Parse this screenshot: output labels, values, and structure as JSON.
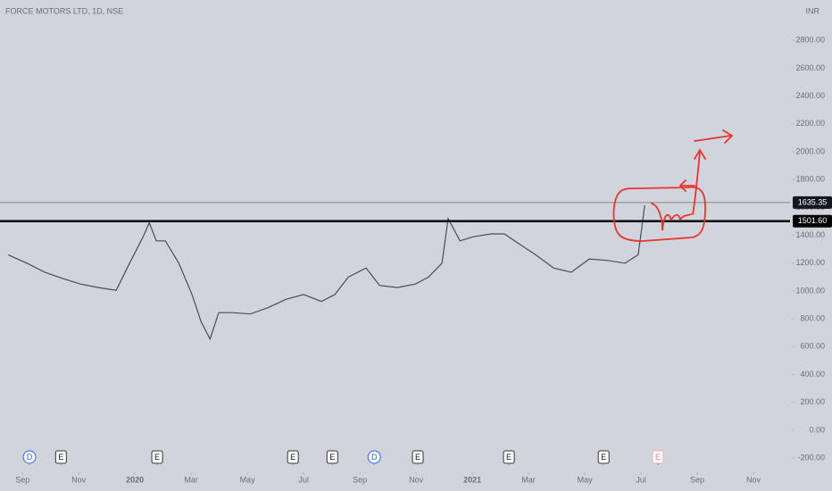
{
  "chart_data": {
    "type": "line",
    "title": "FORCE MOTORS LTD, 1D, NSE",
    "currency": "INR",
    "x": [
      -0.51,
      0.16,
      0.79,
      1.43,
      2.06,
      2.7,
      3.33,
      3.81,
      4.29,
      4.51,
      4.76,
      5.08,
      5.56,
      6.03,
      6.35,
      6.67,
      6.98,
      7.46,
      8.1,
      8.73,
      9.37,
      10.0,
      10.63,
      11.11,
      11.59,
      12.22,
      12.7,
      13.33,
      13.97,
      14.44,
      14.92,
      15.14,
      15.56,
      16.03,
      16.67,
      17.14,
      17.62,
      18.25,
      18.89,
      19.52,
      20.16,
      20.79,
      21.43,
      21.9,
      22.13
    ],
    "series": [
      {
        "name": "FORCE MOTORS LTD",
        "color": "#4a4d57",
        "values": [
          1260,
          1200,
          1135,
          1090,
          1050,
          1025,
          1005,
          1200,
          1390,
          1490,
          1360,
          1360,
          1200,
          975,
          780,
          655,
          845,
          845,
          835,
          880,
          940,
          975,
          925,
          975,
          1100,
          1165,
          1040,
          1025,
          1050,
          1100,
          1200,
          1520,
          1360,
          1390,
          1410,
          1410,
          1345,
          1260,
          1165,
          1135,
          1230,
          1220,
          1200,
          1260,
          1615
        ]
      }
    ],
    "xlim": [
      -0.8,
      27.3
    ],
    "xticks": [
      {
        "value": 0,
        "label": "Sep"
      },
      {
        "value": 2,
        "label": "Nov"
      },
      {
        "value": 4,
        "label": "2020"
      },
      {
        "value": 6,
        "label": "Mar"
      },
      {
        "value": 8,
        "label": "May"
      },
      {
        "value": 10,
        "label": "Jul"
      },
      {
        "value": 12,
        "label": "Sep"
      },
      {
        "value": 14,
        "label": "Nov"
      },
      {
        "value": 16,
        "label": "2021"
      },
      {
        "value": 18,
        "label": "Mar"
      },
      {
        "value": 20,
        "label": "May"
      },
      {
        "value": 22,
        "label": "Jul"
      },
      {
        "value": 24,
        "label": "Sep"
      },
      {
        "value": 26,
        "label": "Nov"
      }
    ],
    "ylim": [
      -276,
      3090
    ],
    "yticks": [
      {
        "value": 2800,
        "label": "2800.00"
      },
      {
        "value": 2600,
        "label": "2600.00"
      },
      {
        "value": 2400,
        "label": "2400.00"
      },
      {
        "value": 2200,
        "label": "2200.00"
      },
      {
        "value": 2000,
        "label": "2000.00"
      },
      {
        "value": 1800,
        "label": "1800.00"
      },
      {
        "value": 1600,
        "label": "1600.00"
      },
      {
        "value": 1400,
        "label": "1400.00"
      },
      {
        "value": 1200,
        "label": "1200.00"
      },
      {
        "value": 1000,
        "label": "1000.00"
      },
      {
        "value": 800,
        "label": "800.00"
      },
      {
        "value": 600,
        "label": "600.00"
      },
      {
        "value": 400,
        "label": "400.00"
      },
      {
        "value": 200,
        "label": "200.00"
      },
      {
        "value": 0,
        "label": "0.00"
      },
      {
        "value": -200,
        "label": "-200.00"
      }
    ],
    "levels": [
      1635.35,
      {
        "value": 1501.6,
        "label": "1501.60"
      }
    ],
    "events": [
      {
        "label": "D",
        "x": 0.25
      },
      {
        "label": "E",
        "x": 1.37
      },
      {
        "label": "E",
        "x": 4.79
      },
      {
        "label": "E",
        "x": 9.62
      },
      {
        "label": "E",
        "x": 11.02
      },
      {
        "label": "D",
        "x": 12.51
      },
      {
        "label": "E",
        "x": 14.06
      },
      {
        "label": "E",
        "x": 17.3
      },
      {
        "label": "E",
        "x": 20.67
      },
      {
        "label": "E",
        "x": 22.6
      }
    ]
  }
}
